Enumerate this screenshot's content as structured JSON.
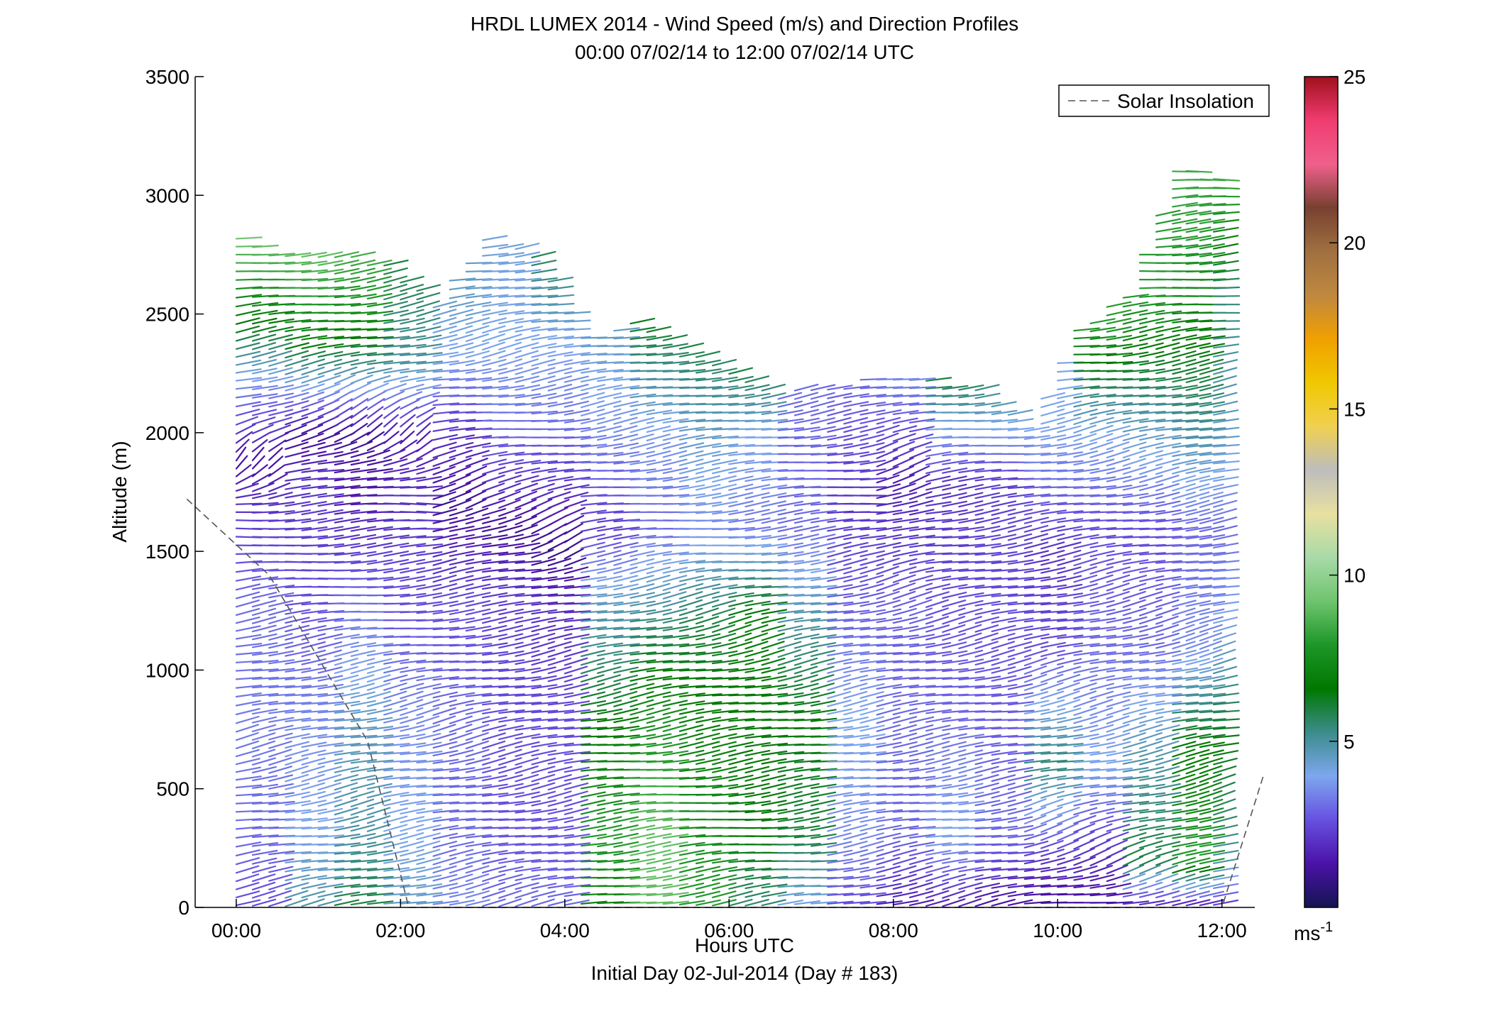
{
  "chart_data": {
    "type": "wind-barb-profile",
    "title": "HRDL LUMEX 2014 - Wind Speed (m/s) and Direction Profiles",
    "subtitle": "00:00 07/02/14 to 12:00 07/02/14  UTC",
    "xlabel": "Hours UTC",
    "footer": "Initial Day 02-Jul-2014 (Day # 183)",
    "ylabel": "Altitude (m)",
    "xlim": [
      -0.5,
      12.4
    ],
    "ylim": [
      0,
      3500
    ],
    "xticks": [
      0,
      2,
      4,
      6,
      8,
      10,
      12
    ],
    "xtick_labels": [
      "00:00",
      "02:00",
      "04:00",
      "06:00",
      "08:00",
      "10:00",
      "12:00"
    ],
    "yticks": [
      0,
      500,
      1000,
      1500,
      2000,
      2500,
      3000,
      3500
    ],
    "ytick_labels": [
      "0",
      "500",
      "1000",
      "1500",
      "2000",
      "2500",
      "3000",
      "3500"
    ],
    "legend": {
      "label": "Solar Insolation",
      "position": "top-right"
    },
    "solar_insolation": {
      "x": [
        -0.6,
        0.4,
        1.6,
        2.1,
        12.0,
        12.5
      ],
      "y": [
        1720,
        1400,
        700,
        0,
        0,
        550
      ]
    },
    "colorbar": {
      "ticks": [
        5,
        10,
        15,
        20,
        25
      ],
      "range": [
        0,
        25
      ],
      "unit": "ms-1",
      "unit_main": "ms",
      "unit_exp": "-1",
      "stops": [
        "#141450",
        "#4b12a8",
        "#6650e0",
        "#7da7ee",
        "#3c8c8c",
        "#007800",
        "#1e9628",
        "#6ec46e",
        "#a8daa8",
        "#e8e0a0",
        "#bdbdbd",
        "#f0d050",
        "#f0c800",
        "#f0a000",
        "#c08840",
        "#a07040",
        "#784030",
        "#f0608c",
        "#f03c70",
        "#a0101c"
      ]
    },
    "profiles": [
      {
        "time": 0.0,
        "top": 2840,
        "profile": [
          [
            0,
            2.5,
            110
          ],
          [
            300,
            3.0,
            105
          ],
          [
            800,
            3.3,
            110
          ],
          [
            1300,
            3.0,
            105
          ],
          [
            1700,
            2.0,
            95
          ],
          [
            1900,
            1.2,
            150
          ],
          [
            2200,
            3.5,
            110
          ],
          [
            2400,
            6.0,
            105
          ],
          [
            2840,
            9.5,
            100
          ]
        ]
      },
      {
        "time": 0.6,
        "top": 2750,
        "profile": [
          [
            0,
            5.0,
            110
          ],
          [
            300,
            4.0,
            105
          ],
          [
            800,
            3.5,
            110
          ],
          [
            1300,
            2.5,
            100
          ],
          [
            1800,
            2.0,
            95
          ],
          [
            2000,
            1.0,
            140
          ],
          [
            2200,
            4.0,
            110
          ],
          [
            2400,
            7.0,
            105
          ],
          [
            2750,
            9.0,
            100
          ]
        ]
      },
      {
        "time": 1.2,
        "top": 2760,
        "profile": [
          [
            0,
            6.0,
            110
          ],
          [
            300,
            5.0,
            108
          ],
          [
            800,
            4.5,
            110
          ],
          [
            1300,
            3.0,
            100
          ],
          [
            1700,
            1.5,
            95
          ],
          [
            2000,
            1.0,
            140
          ],
          [
            2300,
            5.5,
            110
          ],
          [
            2500,
            7.5,
            105
          ],
          [
            2760,
            8.5,
            100
          ]
        ]
      },
      {
        "time": 1.8,
        "top": 2730,
        "profile": [
          [
            0,
            4.5,
            110
          ],
          [
            300,
            4.0,
            105
          ],
          [
            800,
            3.5,
            110
          ],
          [
            1300,
            2.5,
            100
          ],
          [
            1700,
            2.0,
            95
          ],
          [
            2000,
            1.5,
            140
          ],
          [
            2300,
            5.0,
            110
          ],
          [
            2730,
            6.0,
            105
          ]
        ]
      },
      {
        "time": 2.4,
        "top": 2560,
        "profile": [
          [
            0,
            3.5,
            110
          ],
          [
            300,
            3.0,
            105
          ],
          [
            800,
            3.0,
            110
          ],
          [
            1300,
            2.5,
            100
          ],
          [
            1700,
            1.0,
            130
          ],
          [
            2000,
            2.0,
            100
          ],
          [
            2300,
            3.8,
            110
          ],
          [
            2560,
            4.5,
            105
          ]
        ]
      },
      {
        "time": 3.0,
        "top": 2830,
        "profile": [
          [
            0,
            3.0,
            110
          ],
          [
            400,
            2.6,
            105
          ],
          [
            800,
            2.5,
            110
          ],
          [
            1300,
            2.2,
            100
          ],
          [
            1600,
            1.0,
            120
          ],
          [
            2000,
            3.0,
            100
          ],
          [
            2400,
            4.0,
            110
          ],
          [
            2830,
            4.2,
            105
          ]
        ]
      },
      {
        "time": 3.6,
        "top": 2780,
        "profile": [
          [
            0,
            3.0,
            110
          ],
          [
            400,
            2.6,
            105
          ],
          [
            800,
            2.5,
            110
          ],
          [
            1300,
            1.8,
            105
          ],
          [
            1500,
            0.8,
            130
          ],
          [
            2000,
            3.0,
            100
          ],
          [
            2400,
            4.0,
            108
          ],
          [
            2780,
            6.0,
            105
          ]
        ]
      },
      {
        "time": 4.2,
        "top": 2400,
        "profile": [
          [
            0,
            7.0,
            105
          ],
          [
            300,
            8.0,
            100
          ],
          [
            800,
            6.5,
            105
          ],
          [
            1300,
            4.5,
            110
          ],
          [
            1600,
            2.2,
            100
          ],
          [
            2000,
            3.5,
            105
          ],
          [
            2400,
            4.5,
            105
          ]
        ]
      },
      {
        "time": 4.8,
        "top": 2500,
        "profile": [
          [
            0,
            9.0,
            105
          ],
          [
            300,
            9.0,
            100
          ],
          [
            800,
            7.5,
            105
          ],
          [
            1200,
            5.5,
            110
          ],
          [
            1600,
            3.0,
            100
          ],
          [
            2000,
            3.8,
            105
          ],
          [
            2500,
            6.5,
            105
          ]
        ]
      },
      {
        "time": 5.4,
        "top": 2380,
        "profile": [
          [
            0,
            8.0,
            105
          ],
          [
            300,
            7.5,
            100
          ],
          [
            800,
            6.8,
            105
          ],
          [
            1200,
            6.0,
            110
          ],
          [
            1600,
            3.5,
            100
          ],
          [
            2000,
            4.5,
            105
          ],
          [
            2380,
            6.0,
            105
          ]
        ]
      },
      {
        "time": 6.0,
        "top": 2260,
        "profile": [
          [
            0,
            5.5,
            105
          ],
          [
            300,
            6.5,
            100
          ],
          [
            800,
            6.5,
            105
          ],
          [
            1200,
            7.0,
            110
          ],
          [
            1600,
            3.2,
            100
          ],
          [
            2000,
            4.0,
            105
          ],
          [
            2260,
            6.0,
            105
          ]
        ]
      },
      {
        "time": 6.6,
        "top": 2180,
        "profile": [
          [
            0,
            4.0,
            105
          ],
          [
            300,
            6.0,
            100
          ],
          [
            800,
            6.5,
            105
          ],
          [
            1200,
            5.0,
            110
          ],
          [
            1600,
            3.0,
            100
          ],
          [
            2180,
            3.0,
            105
          ]
        ]
      },
      {
        "time": 7.2,
        "top": 2220,
        "profile": [
          [
            0,
            2.5,
            110
          ],
          [
            300,
            3.5,
            105
          ],
          [
            800,
            4.0,
            105
          ],
          [
            1200,
            3.0,
            110
          ],
          [
            1700,
            2.0,
            100
          ],
          [
            2220,
            3.0,
            105
          ]
        ]
      },
      {
        "time": 7.8,
        "top": 2230,
        "profile": [
          [
            0,
            1.5,
            110
          ],
          [
            300,
            3.0,
            105
          ],
          [
            800,
            3.0,
            105
          ],
          [
            1300,
            2.8,
            110
          ],
          [
            1800,
            1.5,
            120
          ],
          [
            2230,
            3.5,
            105
          ]
        ]
      },
      {
        "time": 8.4,
        "top": 2230,
        "profile": [
          [
            0,
            1.5,
            110
          ],
          [
            300,
            4.0,
            105
          ],
          [
            800,
            3.0,
            105
          ],
          [
            1300,
            2.5,
            110
          ],
          [
            1800,
            2.0,
            100
          ],
          [
            2230,
            6.0,
            105
          ]
        ]
      },
      {
        "time": 9.0,
        "top": 2210,
        "profile": [
          [
            0,
            1.2,
            110
          ],
          [
            300,
            3.0,
            105
          ],
          [
            800,
            2.8,
            105
          ],
          [
            1300,
            2.5,
            110
          ],
          [
            1800,
            2.2,
            100
          ],
          [
            2210,
            5.5,
            105
          ]
        ]
      },
      {
        "time": 9.6,
        "top": 2040,
        "profile": [
          [
            0,
            1.0,
            100
          ],
          [
            200,
            2.0,
            120
          ],
          [
            600,
            5.5,
            108
          ],
          [
            1100,
            2.5,
            112
          ],
          [
            1500,
            2.0,
            105
          ],
          [
            2040,
            4.0,
            105
          ]
        ]
      },
      {
        "time": 10.2,
        "top": 2450,
        "profile": [
          [
            0,
            1.2,
            100
          ],
          [
            200,
            1.8,
            120
          ],
          [
            600,
            4.0,
            108
          ],
          [
            1100,
            3.0,
            112
          ],
          [
            1600,
            2.5,
            105
          ],
          [
            2000,
            4.0,
            110
          ],
          [
            2450,
            8.0,
            100
          ]
        ]
      },
      {
        "time": 10.8,
        "top": 2590,
        "profile": [
          [
            0,
            1.5,
            100
          ],
          [
            200,
            6.0,
            120
          ],
          [
            600,
            5.0,
            108
          ],
          [
            1100,
            3.0,
            112
          ],
          [
            1600,
            2.5,
            105
          ],
          [
            2000,
            4.5,
            110
          ],
          [
            2590,
            8.0,
            100
          ]
        ]
      },
      {
        "time": 11.4,
        "top": 3120,
        "profile": [
          [
            0,
            1.2,
            100
          ],
          [
            200,
            8.0,
            120
          ],
          [
            700,
            6.5,
            108
          ],
          [
            1100,
            3.5,
            112
          ],
          [
            1600,
            3.0,
            105
          ],
          [
            2000,
            5.0,
            110
          ],
          [
            2600,
            7.5,
            100
          ],
          [
            3120,
            8.5,
            95
          ]
        ]
      },
      {
        "time": 11.9,
        "top": 3080,
        "profile": [
          [
            0,
            2.0,
            100
          ],
          [
            200,
            5.0,
            120
          ],
          [
            700,
            6.5,
            108
          ],
          [
            1200,
            4.0,
            112
          ],
          [
            1600,
            3.0,
            105
          ],
          [
            2000,
            4.5,
            110
          ],
          [
            2600,
            5.5,
            100
          ],
          [
            3080,
            8.5,
            95
          ]
        ]
      }
    ]
  }
}
